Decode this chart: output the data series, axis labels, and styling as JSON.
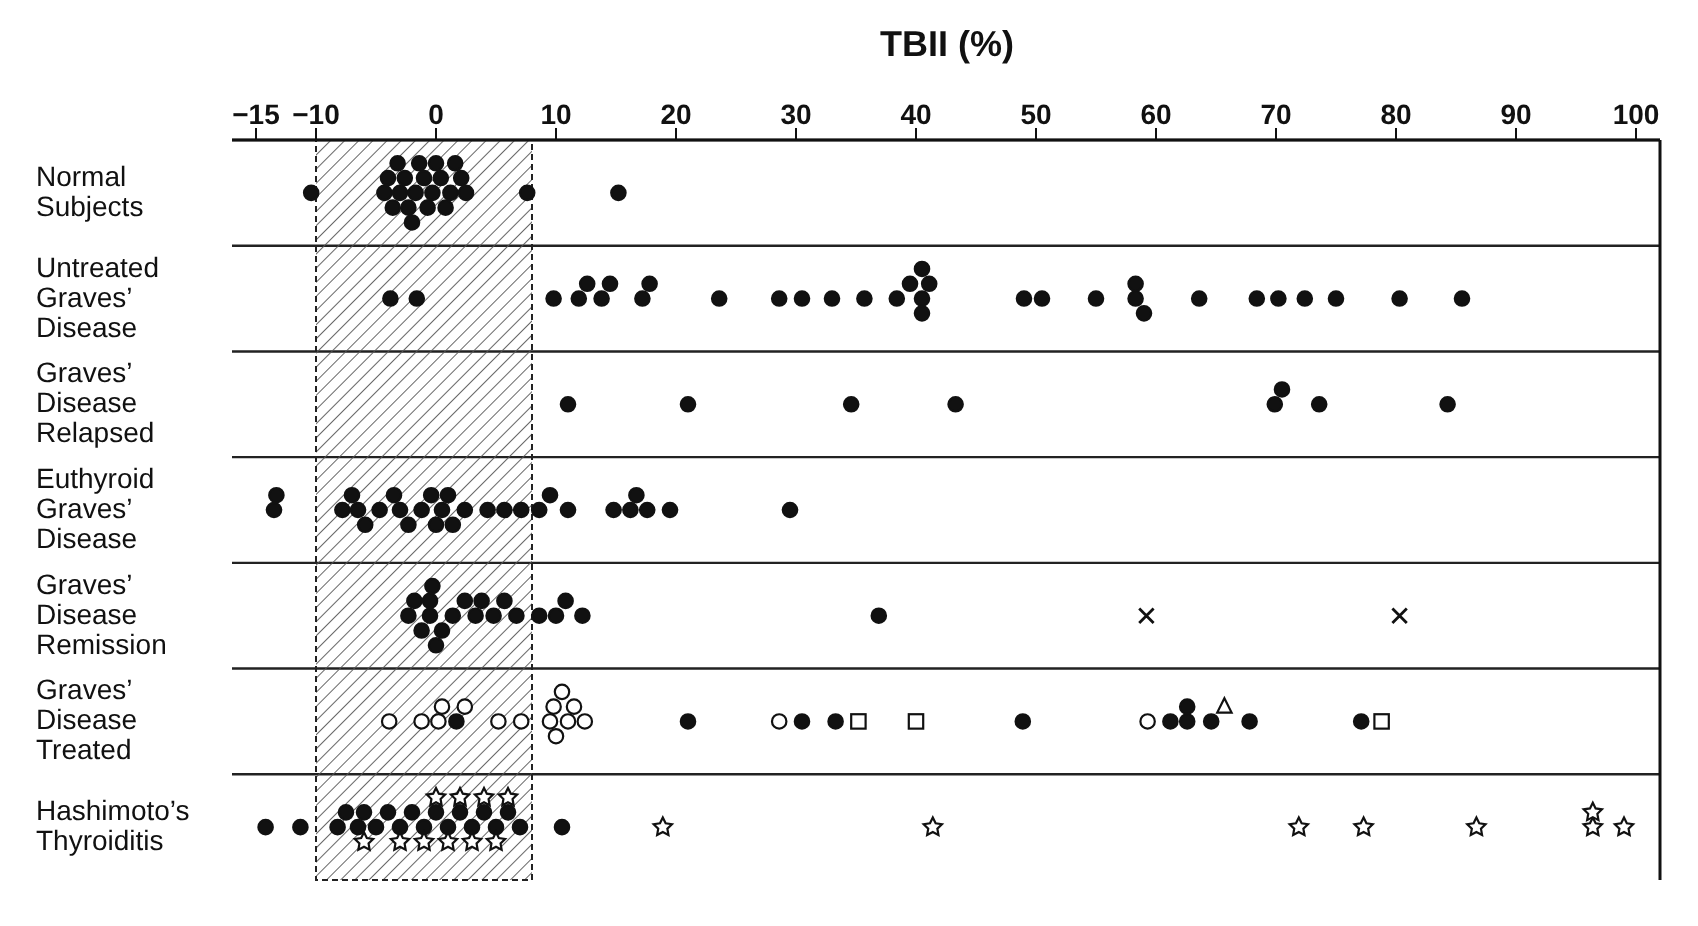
{
  "chart_data": {
    "type": "scatter",
    "orientation": "horizontal",
    "xlabel": "TBII (%)",
    "categories": [
      "Normal\nSubjects",
      "Untreated\nGraves’\nDisease",
      "Graves’\nDisease\nRelapsed",
      "Euthyroid\nGraves’\nDisease",
      "Graves’\nDisease\nRemission",
      "Graves’\nDisease\nTreated",
      "Hashimoto’s\nThyroiditis"
    ],
    "xlim": [
      -17,
      102
    ],
    "xticks": [
      -15,
      -10,
      0,
      10,
      20,
      30,
      40,
      50,
      60,
      70,
      80,
      90,
      100
    ],
    "grid": "y",
    "bands": [
      {
        "axis": "x",
        "from": -10,
        "to": 8
      }
    ],
    "series": [
      {
        "color": "#111111",
        "marker": "circle",
        "x": [
          "Normal\nSubjects",
          "Normal\nSubjects",
          "Normal\nSubjects",
          "Normal\nSubjects",
          "Normal\nSubjects",
          "Normal\nSubjects",
          "Normal\nSubjects",
          "Normal\nSubjects",
          "Normal\nSubjects",
          "Normal\nSubjects",
          "Normal\nSubjects",
          "Normal\nSubjects",
          "Normal\nSubjects",
          "Normal\nSubjects",
          "Normal\nSubjects",
          "Normal\nSubjects",
          "Normal\nSubjects",
          "Normal\nSubjects",
          "Normal\nSubjects",
          "Normal\nSubjects",
          "Normal\nSubjects",
          "Normal\nSubjects",
          "Normal\nSubjects",
          "Untreated\nGraves’\nDisease",
          "Untreated\nGraves’\nDisease",
          "Untreated\nGraves’\nDisease",
          "Untreated\nGraves’\nDisease",
          "Untreated\nGraves’\nDisease",
          "Untreated\nGraves’\nDisease",
          "Untreated\nGraves’\nDisease",
          "Untreated\nGraves’\nDisease",
          "Untreated\nGraves’\nDisease",
          "Untreated\nGraves’\nDisease",
          "Untreated\nGraves’\nDisease",
          "Untreated\nGraves’\nDisease",
          "Untreated\nGraves’\nDisease",
          "Untreated\nGraves’\nDisease",
          "Untreated\nGraves’\nDisease",
          "Untreated\nGraves’\nDisease",
          "Untreated\nGraves’\nDisease",
          "Untreated\nGraves’\nDisease",
          "Untreated\nGraves’\nDisease",
          "Untreated\nGraves’\nDisease",
          "Untreated\nGraves’\nDisease",
          "Untreated\nGraves’\nDisease",
          "Untreated\nGraves’\nDisease",
          "Untreated\nGraves’\nDisease",
          "Untreated\nGraves’\nDisease",
          "Untreated\nGraves’\nDisease",
          "Untreated\nGraves’\nDisease",
          "Untreated\nGraves’\nDisease",
          "Untreated\nGraves’\nDisease",
          "Untreated\nGraves’\nDisease",
          "Untreated\nGraves’\nDisease",
          "Untreated\nGraves’\nDisease",
          "Untreated\nGraves’\nDisease",
          "Graves’\nDisease\nRelapsed",
          "Graves’\nDisease\nRelapsed",
          "Graves’\nDisease\nRelapsed",
          "Graves’\nDisease\nRelapsed",
          "Graves’\nDisease\nRelapsed",
          "Graves’\nDisease\nRelapsed",
          "Graves’\nDisease\nRelapsed",
          "Graves’\nDisease\nRelapsed",
          "Euthyroid\nGraves’\nDisease",
          "Euthyroid\nGraves’\nDisease",
          "Euthyroid\nGraves’\nDisease",
          "Euthyroid\nGraves’\nDisease",
          "Euthyroid\nGraves’\nDisease",
          "Euthyroid\nGraves’\nDisease",
          "Euthyroid\nGraves’\nDisease",
          "Euthyroid\nGraves’\nDisease",
          "Euthyroid\nGraves’\nDisease",
          "Euthyroid\nGraves’\nDisease",
          "Euthyroid\nGraves’\nDisease",
          "Euthyroid\nGraves’\nDisease",
          "Euthyroid\nGraves’\nDisease",
          "Euthyroid\nGraves’\nDisease",
          "Euthyroid\nGraves’\nDisease",
          "Euthyroid\nGraves’\nDisease",
          "Euthyroid\nGraves’\nDisease",
          "Euthyroid\nGraves’\nDisease",
          "Euthyroid\nGraves’\nDisease",
          "Euthyroid\nGraves’\nDisease",
          "Euthyroid\nGraves’\nDisease",
          "Euthyroid\nGraves’\nDisease",
          "Euthyroid\nGraves’\nDisease",
          "Euthyroid\nGraves’\nDisease",
          "Euthyroid\nGraves’\nDisease",
          "Euthyroid\nGraves’\nDisease",
          "Euthyroid\nGraves’\nDisease",
          "Euthyroid\nGraves’\nDisease",
          "Euthyroid\nGraves’\nDisease",
          "Graves’\nDisease\nRemission",
          "Graves’\nDisease\nRemission",
          "Graves’\nDisease\nRemission",
          "Graves’\nDisease\nRemission",
          "Graves’\nDisease\nRemission",
          "Graves’\nDisease\nRemission",
          "Graves’\nDisease\nRemission",
          "Graves’\nDisease\nRemission",
          "Graves’\nDisease\nRemission",
          "Graves’\nDisease\nRemission",
          "Graves’\nDisease\nRemission",
          "Graves’\nDisease\nRemission",
          "Graves’\nDisease\nRemission",
          "Graves’\nDisease\nRemission",
          "Graves’\nDisease\nRemission",
          "Graves’\nDisease\nRemission",
          "Graves’\nDisease\nRemission",
          "Graves’\nDisease\nRemission",
          "Graves’\nDisease\nRemission",
          "Graves’\nDisease\nRemission",
          "Graves’\nDisease\nTreated",
          "Graves’\nDisease\nTreated",
          "Graves’\nDisease\nTreated",
          "Graves’\nDisease\nTreated",
          "Graves’\nDisease\nTreated",
          "Graves’\nDisease\nTreated",
          "Graves’\nDisease\nTreated",
          "Graves’\nDisease\nTreated",
          "Graves’\nDisease\nTreated",
          "Graves’\nDisease\nTreated",
          "Graves’\nDisease\nTreated",
          "Hashimoto’s\nThyroiditis",
          "Hashimoto’s\nThyroiditis",
          "Hashimoto’s\nThyroiditis",
          "Hashimoto’s\nThyroiditis",
          "Hashimoto’s\nThyroiditis",
          "Hashimoto’s\nThyroiditis",
          "Hashimoto’s\nThyroiditis",
          "Hashimoto’s\nThyroiditis",
          "Hashimoto’s\nThyroiditis",
          "Hashimoto’s\nThyroiditis",
          "Hashimoto’s\nThyroiditis",
          "Hashimoto’s\nThyroiditis",
          "Hashimoto’s\nThyroiditis",
          "Hashimoto’s\nThyroiditis",
          "Hashimoto’s\nThyroiditis",
          "Hashimoto’s\nThyroiditis",
          "Hashimoto’s\nThyroiditis",
          "Hashimoto’s\nThyroiditis",
          "Hashimoto’s\nThyroiditis",
          "Hashimoto’s\nThyroiditis"
        ],
        "values": [
          -10.4,
          -4.3,
          -4,
          -3.6,
          -3.2,
          -3,
          -2.6,
          -2.3,
          -2,
          -1.7,
          -1.4,
          -1,
          -0.7,
          -0.3,
          0,
          0.4,
          0.8,
          1.2,
          1.6,
          2.1,
          2.5,
          7.6,
          15.2,
          -3.8,
          -1.6,
          9.8,
          11.9,
          12.6,
          13.8,
          14.5,
          17.2,
          17.8,
          23.6,
          28.6,
          30.5,
          33,
          35.7,
          38.4,
          39.5,
          40.5,
          40.5,
          40.5,
          41.1,
          49,
          50.5,
          55,
          58.3,
          58.3,
          59,
          63.6,
          68.4,
          70.2,
          72.4,
          75,
          80.3,
          85.5,
          11,
          21,
          34.6,
          43.3,
          69.9,
          70.5,
          73.6,
          84.3,
          -13.5,
          -13.3,
          -7.8,
          -7,
          -6.5,
          -5.9,
          -4.7,
          -3.5,
          -3,
          -2.3,
          -1.2,
          -0.4,
          0,
          0.5,
          1,
          1.4,
          2.4,
          4.3,
          5.7,
          7.1,
          8.6,
          9.5,
          11,
          14.8,
          16.2,
          16.7,
          17.6,
          19.5,
          29.5,
          -2.3,
          -1.8,
          -1.2,
          -0.5,
          -0.5,
          -0.3,
          0,
          0.5,
          1.4,
          2.4,
          3.3,
          3.8,
          4.8,
          5.7,
          6.7,
          8.6,
          10,
          10.8,
          12.2,
          36.9,
          1.7,
          21,
          30.5,
          33.3,
          48.9,
          61.2,
          62.6,
          62.6,
          64.6,
          67.8,
          77.1,
          -14.2,
          -11.3,
          -8.2,
          -7.5,
          -6.5,
          -6,
          -5,
          -4,
          -3,
          -2,
          -1,
          0,
          1,
          2,
          3,
          4,
          5,
          6,
          7,
          10.5
        ]
      },
      {
        "color": "#ffffff",
        "marker": "circle",
        "x": [
          "Graves’\nDisease\nTreated",
          "Graves’\nDisease\nTreated",
          "Graves’\nDisease\nTreated",
          "Graves’\nDisease\nTreated",
          "Graves’\nDisease\nTreated",
          "Graves’\nDisease\nTreated",
          "Graves’\nDisease\nTreated",
          "Graves’\nDisease\nTreated",
          "Graves’\nDisease\nTreated",
          "Graves’\nDisease\nTreated",
          "Graves’\nDisease\nTreated",
          "Graves’\nDisease\nTreated",
          "Graves’\nDisease\nTreated",
          "Graves’\nDisease\nTreated",
          "Graves’\nDisease\nTreated",
          "Graves’\nDisease\nTreated"
        ],
        "values": [
          -3.9,
          -1.2,
          0.2,
          0.5,
          2.4,
          5.2,
          7.1,
          9.5,
          9.8,
          10,
          10.5,
          11,
          11.5,
          12.4,
          28.6,
          59.3
        ]
      },
      {
        "color": "#ffffff",
        "marker": "square",
        "x": [
          "Graves’\nDisease\nTreated",
          "Graves’\nDisease\nTreated",
          "Graves’\nDisease\nTreated"
        ],
        "values": [
          35.2,
          40,
          78.8
        ]
      },
      {
        "color": "#ffffff",
        "marker": "triangle",
        "x": [
          "Graves’\nDisease\nTreated"
        ],
        "values": [
          65.7
        ]
      },
      {
        "color": "#111111",
        "marker": "cross",
        "x": [
          "Graves’\nDisease\nRemission",
          "Graves’\nDisease\nRemission"
        ],
        "values": [
          59.2,
          80.3
        ]
      },
      {
        "color": "#111111",
        "marker": "star",
        "x": [
          "Hashimoto’s\nThyroiditis",
          "Hashimoto’s\nThyroiditis",
          "Hashimoto’s\nThyroiditis",
          "Hashimoto’s\nThyroiditis",
          "Hashimoto’s\nThyroiditis",
          "Hashimoto’s\nThyroiditis",
          "Hashimoto’s\nThyroiditis",
          "Hashimoto’s\nThyroiditis",
          "Hashimoto’s\nThyroiditis",
          "Hashimoto’s\nThyroiditis",
          "Hashimoto’s\nThyroiditis",
          "Hashimoto’s\nThyroiditis",
          "Hashimoto’s\nThyroiditis",
          "Hashimoto’s\nThyroiditis",
          "Hashimoto’s\nThyroiditis",
          "Hashimoto’s\nThyroiditis",
          "Hashimoto’s\nThyroiditis",
          "Hashimoto’s\nThyroiditis"
        ],
        "values": [
          -6,
          -3,
          -1,
          0,
          1,
          2,
          3,
          4,
          5,
          6,
          18.9,
          41.4,
          71.9,
          77.3,
          86.7,
          96.4,
          96.4,
          99
        ]
      }
    ]
  }
}
